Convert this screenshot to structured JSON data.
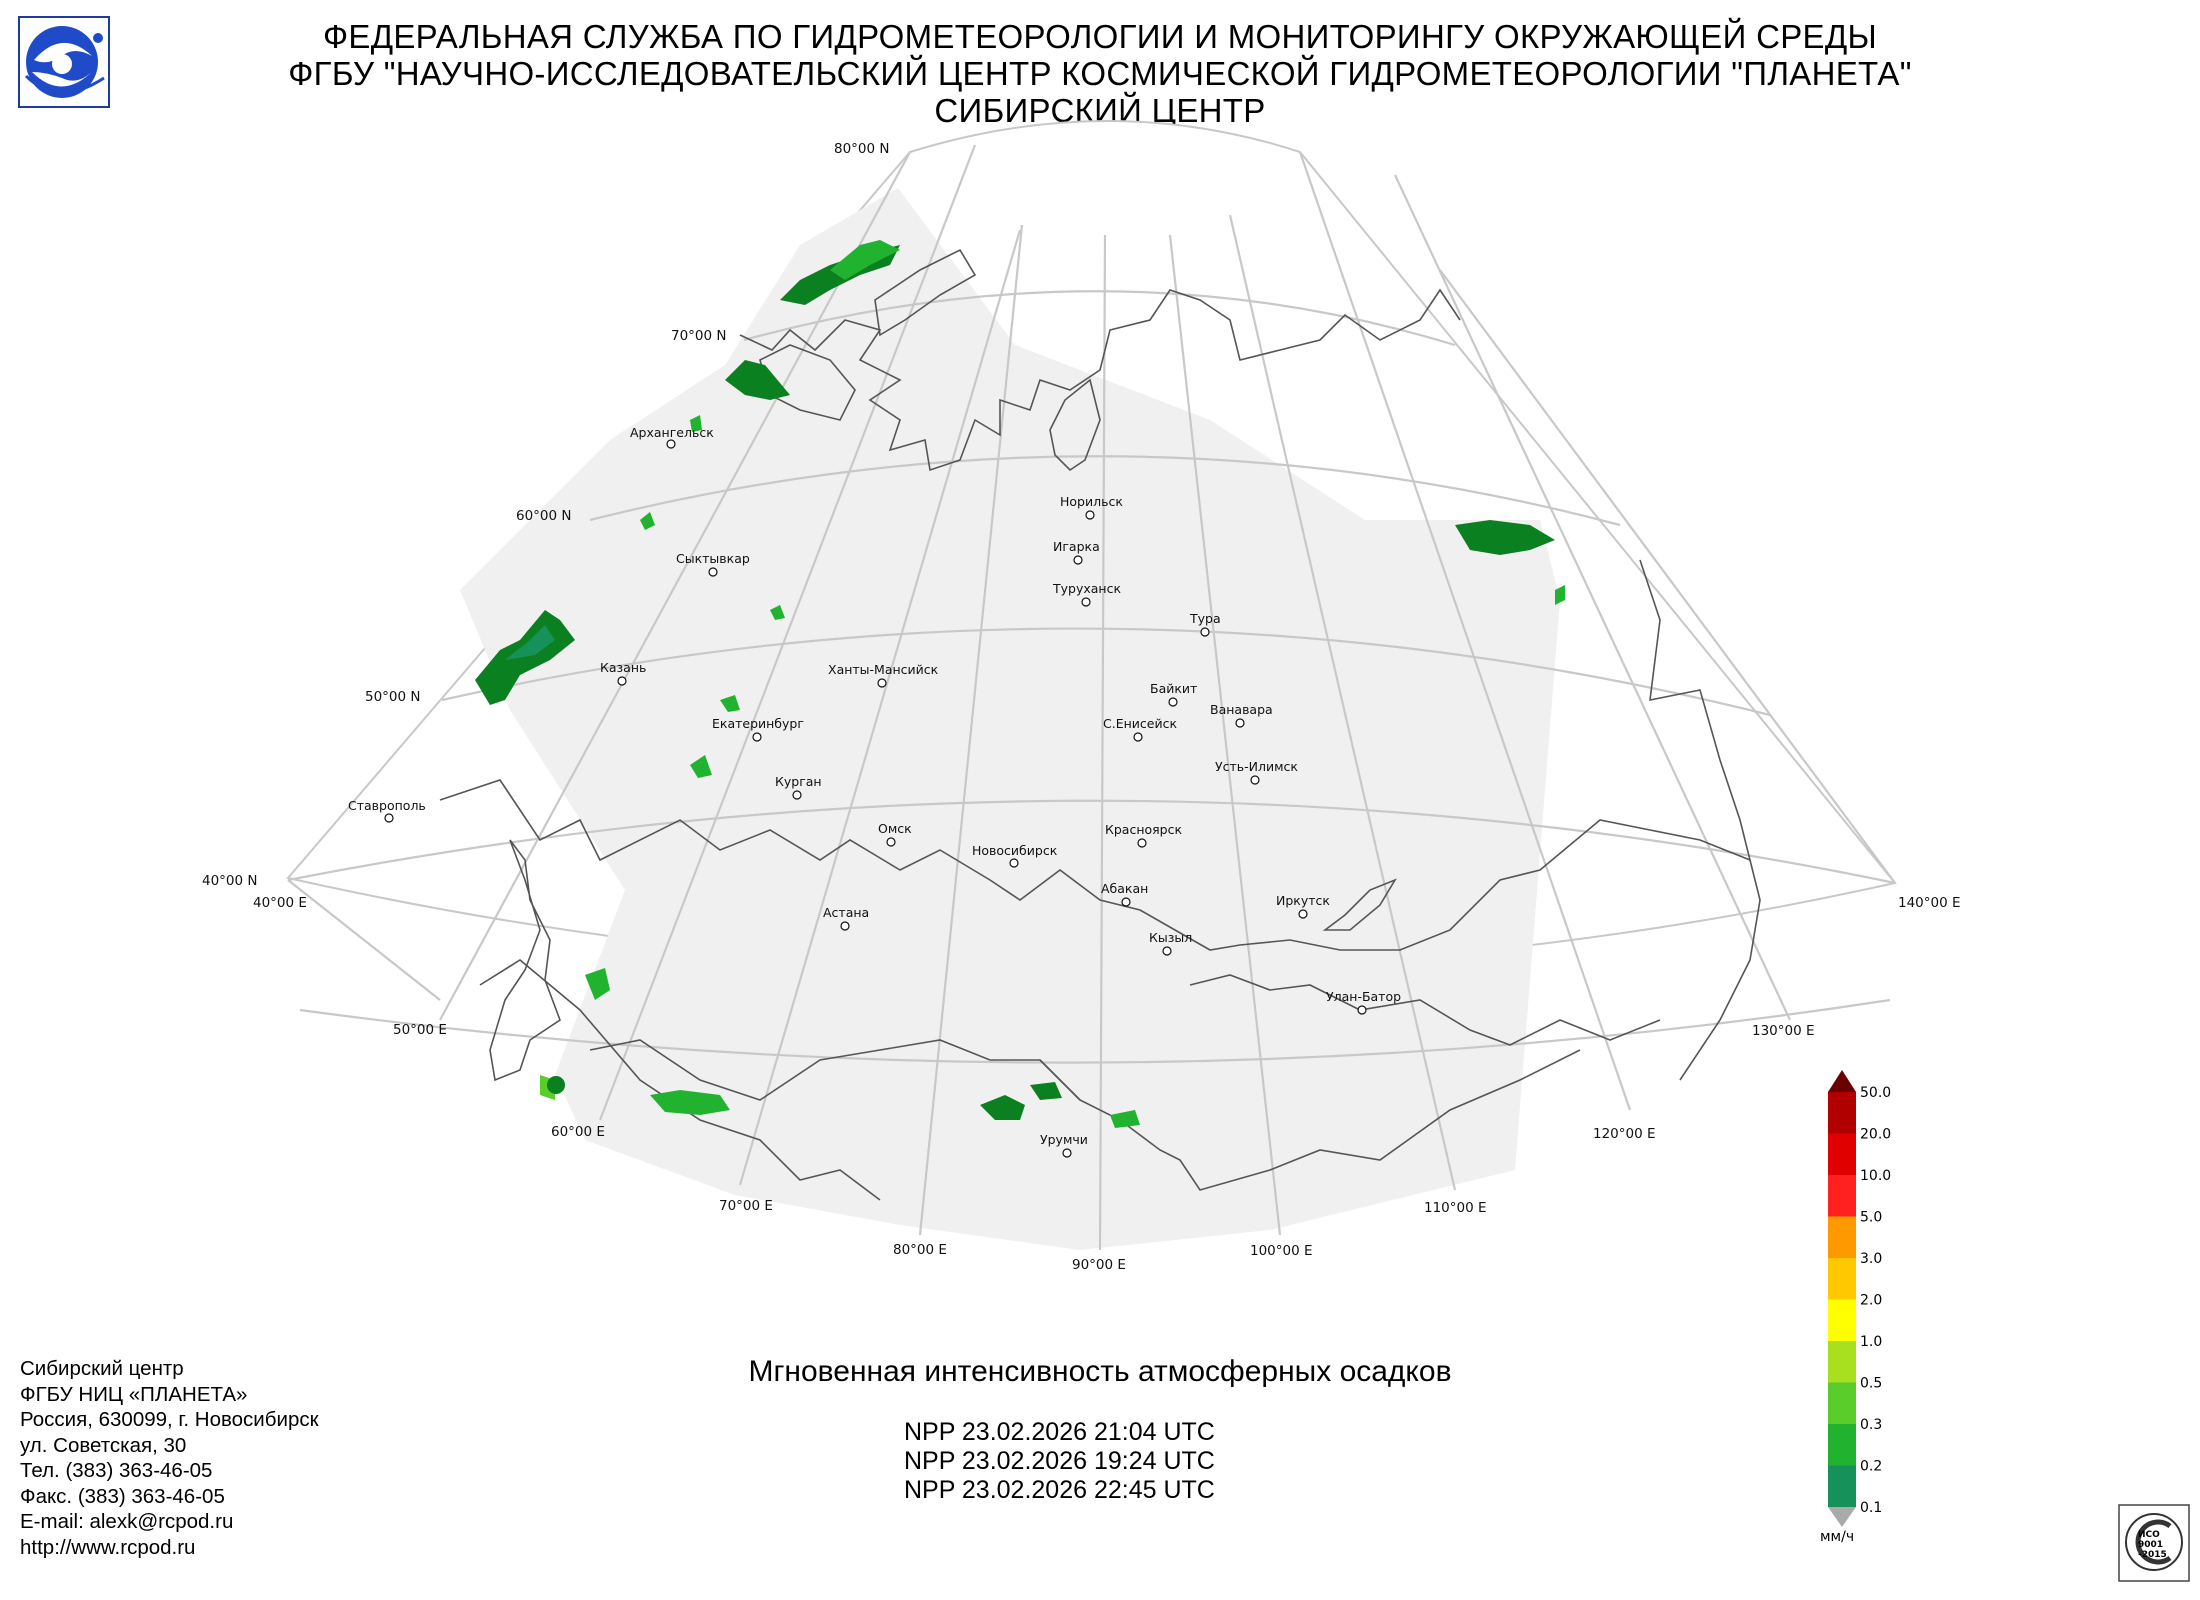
{
  "header": {
    "line1": "ФЕДЕРАЛЬНАЯ СЛУЖБА ПО ГИДРОМЕТЕОРОЛОГИИ И МОНИТОРИНГУ ОКРУЖАЮЩЕЙ СРЕДЫ",
    "line2": "ФГБУ \"НАУЧНО-ИССЛЕДОВАТЕЛЬСКИЙ ЦЕНТР КОСМИЧЕСКОЙ ГИДРОМЕТЕОРОЛОГИИ \"ПЛАНЕТА\"",
    "line3": "СИБИРСКИЙ ЦЕНТР"
  },
  "map": {
    "lat_labels": [
      "80°00 N",
      "70°00 N",
      "60°00 N",
      "50°00 N",
      "40°00 N"
    ],
    "lon_labels": [
      "40°00 E",
      "50°00 E",
      "60°00 E",
      "70°00 E",
      "80°00 E",
      "90°00 E",
      "100°00 E",
      "110°00 E",
      "120°00 E",
      "130°00 E",
      "140°00 E"
    ],
    "cities": [
      "Архангельск",
      "Сыктывкар",
      "Казань",
      "Екатеринбург",
      "Курган",
      "Ставрополь",
      "Ханты-Мансийск",
      "Омск",
      "Новосибирск",
      "Астана",
      "Норильск",
      "Игарка",
      "Туруханск",
      "Тура",
      "Байкит",
      "Ванавара",
      "С.Енисейск",
      "Усть-Илимск",
      "Красноярск",
      "Абакан",
      "Кызыл",
      "Иркутск",
      "Улан-Батор",
      "Урумчи"
    ]
  },
  "product": {
    "title": "Мгновенная интенсивность атмосферных осадков",
    "passes": [
      "NPP 23.02.2026  21:04 UTC",
      "NPP 23.02.2026  19:24 UTC",
      "NPP 23.02.2026  22:45 UTC"
    ]
  },
  "contacts": [
    "Сибирский центр",
    "ФГБУ НИЦ «ПЛАНЕТА»",
    "Россия, 630099, г. Новосибирск",
    "ул. Советская, 30",
    "Тел. (383) 363-46-05",
    "Факс. (383) 363-46-05",
    "E-mail: alexk@rcpod.ru",
    "http://www.rcpod.ru"
  ],
  "legend": {
    "levels": [
      "50.0",
      "20.0",
      "10.0",
      "5.0",
      "3.0",
      "2.0",
      "1.0",
      "0.5",
      "0.3",
      "0.2",
      "0.1"
    ],
    "colors": [
      "#b00000",
      "#e00000",
      "#ff2020",
      "#ff9900",
      "#ffc800",
      "#ffff00",
      "#a8e020",
      "#5acd2a",
      "#21b230",
      "#17915a",
      "#0b8020",
      "#0a6b10"
    ],
    "unit": "мм/ч"
  },
  "iso_badge": {
    "line1": "ИСО",
    "line2": "9001",
    "line3": "-2015"
  }
}
